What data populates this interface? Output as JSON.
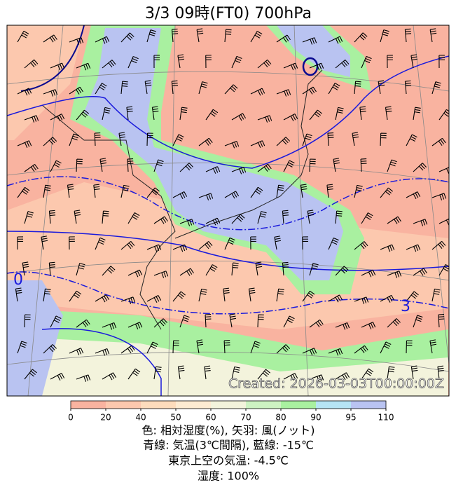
{
  "title": "3/3  09時(FT0)     700hPa",
  "map": {
    "stamp": "Created: 2026-03-03T00:00:00Z",
    "contour_labels": [
      "0",
      "3"
    ]
  },
  "colorbar": {
    "ticks": [
      0,
      20,
      40,
      50,
      60,
      70,
      80,
      90,
      95,
      110
    ],
    "colors": [
      "#f9b3a0",
      "#fcc8ae",
      "#fddcbc",
      "#fdebd2",
      "#f3f3dc",
      "#cdf2c2",
      "#a9f0a0",
      "#b6e4f4",
      "#b9c3f1"
    ]
  },
  "caption": [
    "色: 相対湿度(%),  矢羽: 風(ノット)",
    "青線: 気温(3℃間隔), 藍線: -15℃",
    "東京上空の気温: -4.5℃",
    "湿度: 100%"
  ]
}
